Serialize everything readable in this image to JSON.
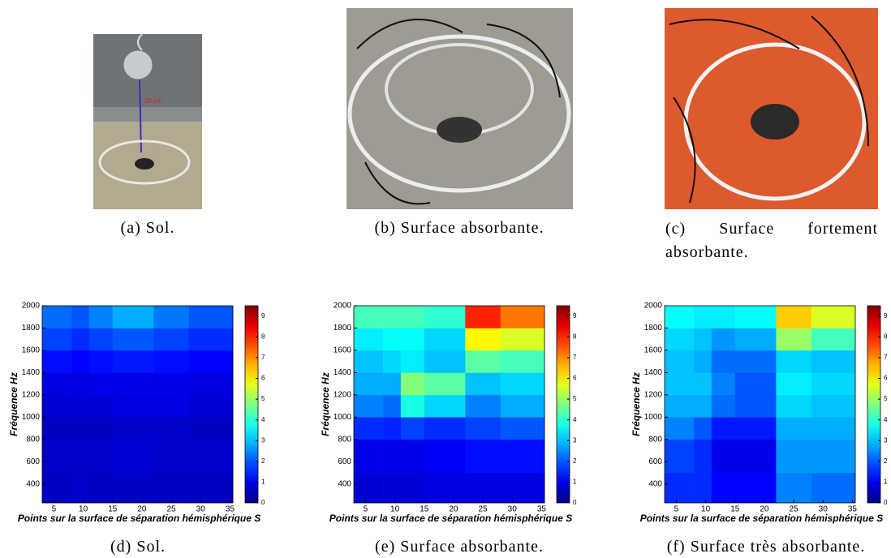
{
  "photos": [
    {
      "caption": "(a) Sol.",
      "annotation": "28 cm"
    },
    {
      "caption": "(b) Surface absorbante."
    },
    {
      "caption": "(c) Surface fortement absorbante."
    }
  ],
  "chart_data": [
    {
      "type": "heatmap",
      "caption": "(d) Sol.",
      "ylabel": "Fréquence Hz",
      "xlabel": "Points sur la surface de séparation hémisphérique S",
      "xlim": [
        3,
        35.5
      ],
      "ylim": [
        230,
        2000
      ],
      "xticks": [
        5,
        10,
        15,
        20,
        25,
        30,
        35
      ],
      "yticks": [
        400,
        600,
        800,
        1000,
        1200,
        1400,
        1600,
        1800,
        2000
      ],
      "x_bins": [
        3,
        8,
        11,
        15,
        22,
        28,
        35.5
      ],
      "y_bins": [
        230,
        500,
        800,
        1000,
        1200,
        1400,
        1600,
        1800,
        2000
      ],
      "values": [
        [
          0.6,
          0.7,
          0.6,
          0.6,
          0.6,
          0.6
        ],
        [
          0.7,
          0.7,
          0.7,
          0.8,
          0.7,
          0.7
        ],
        [
          0.6,
          0.6,
          0.6,
          0.7,
          0.7,
          0.6
        ],
        [
          0.8,
          0.8,
          0.8,
          0.9,
          0.9,
          0.8
        ],
        [
          0.9,
          0.9,
          1,
          1,
          1,
          0.9
        ],
        [
          1.3,
          1.2,
          1.3,
          1.4,
          1.3,
          1.2
        ],
        [
          1.8,
          1.6,
          1.8,
          2,
          1.8,
          1.6
        ],
        [
          2.2,
          2,
          2.4,
          2.8,
          2.3,
          2
        ]
      ],
      "colormap": "jet",
      "clim": [
        0,
        9.5
      ],
      "cticks": [
        0,
        1,
        2,
        3,
        4,
        5,
        6,
        7,
        8,
        9
      ]
    },
    {
      "type": "heatmap",
      "caption": "(e) Surface absorbante.",
      "ylabel": "Fréquence Hz",
      "xlabel": "Points sur la surface de séparation hémisphérique S",
      "xlim": [
        3,
        35.5
      ],
      "ylim": [
        230,
        2000
      ],
      "xticks": [
        5,
        10,
        15,
        20,
        25,
        30,
        35
      ],
      "yticks": [
        400,
        600,
        800,
        1000,
        1200,
        1400,
        1600,
        1800,
        2000
      ],
      "x_bins": [
        3,
        8,
        11,
        15,
        22,
        28,
        35.5
      ],
      "y_bins": [
        230,
        500,
        800,
        1000,
        1200,
        1400,
        1600,
        1800,
        2000
      ],
      "values": [
        [
          0.8,
          0.8,
          0.8,
          0.9,
          0.9,
          0.9
        ],
        [
          1,
          1,
          1,
          1.1,
          1.3,
          1.3
        ],
        [
          1.6,
          1.5,
          1.8,
          1.6,
          1.8,
          2
        ],
        [
          2.4,
          2.2,
          3.8,
          3.2,
          2.4,
          2.8
        ],
        [
          2.8,
          2.8,
          4.8,
          4.4,
          3,
          3.2
        ],
        [
          3,
          3.2,
          3.4,
          3,
          4.4,
          4.2
        ],
        [
          3.4,
          3.6,
          3.6,
          3.2,
          6,
          5.6
        ],
        [
          4.2,
          4.2,
          4.2,
          4,
          8,
          7.2
        ]
      ],
      "colormap": "jet",
      "clim": [
        0,
        9.5
      ],
      "cticks": [
        0,
        1,
        2,
        3,
        4,
        5,
        6,
        7,
        8,
        9
      ]
    },
    {
      "type": "heatmap",
      "caption": "(f) Surface très absorbante.",
      "ylabel": "Fréquence Hz",
      "xlabel": "Points sur la surface de séparation hémisphérique S",
      "xlim": [
        3,
        35.5
      ],
      "ylim": [
        230,
        2000
      ],
      "xticks": [
        5,
        10,
        15,
        20,
        25,
        30,
        35
      ],
      "yticks": [
        400,
        600,
        800,
        1000,
        1200,
        1400,
        1600,
        1800,
        2000
      ],
      "x_bins": [
        3,
        8,
        11,
        15,
        22,
        28,
        35.5
      ],
      "y_bins": [
        230,
        500,
        800,
        1000,
        1200,
        1400,
        1600,
        1800,
        2000
      ],
      "values": [
        [
          1.6,
          1.6,
          1.2,
          1.2,
          2.4,
          2.2
        ],
        [
          1.8,
          1.6,
          1,
          1,
          2.6,
          2.6
        ],
        [
          2.4,
          2,
          1.4,
          1.4,
          2.8,
          2.8
        ],
        [
          2.8,
          2.8,
          2.2,
          2,
          3.2,
          3
        ],
        [
          3,
          3,
          2.4,
          2,
          3.4,
          3.2
        ],
        [
          3,
          2.8,
          2.2,
          2.2,
          3.2,
          3
        ],
        [
          3.2,
          3,
          2.6,
          2.8,
          5,
          4.2
        ],
        [
          3.6,
          3.4,
          3.4,
          3.6,
          6.4,
          5.6
        ]
      ],
      "colormap": "jet",
      "clim": [
        0,
        9.5
      ],
      "cticks": [
        0,
        1,
        2,
        3,
        4,
        5,
        6,
        7,
        8,
        9
      ]
    }
  ]
}
